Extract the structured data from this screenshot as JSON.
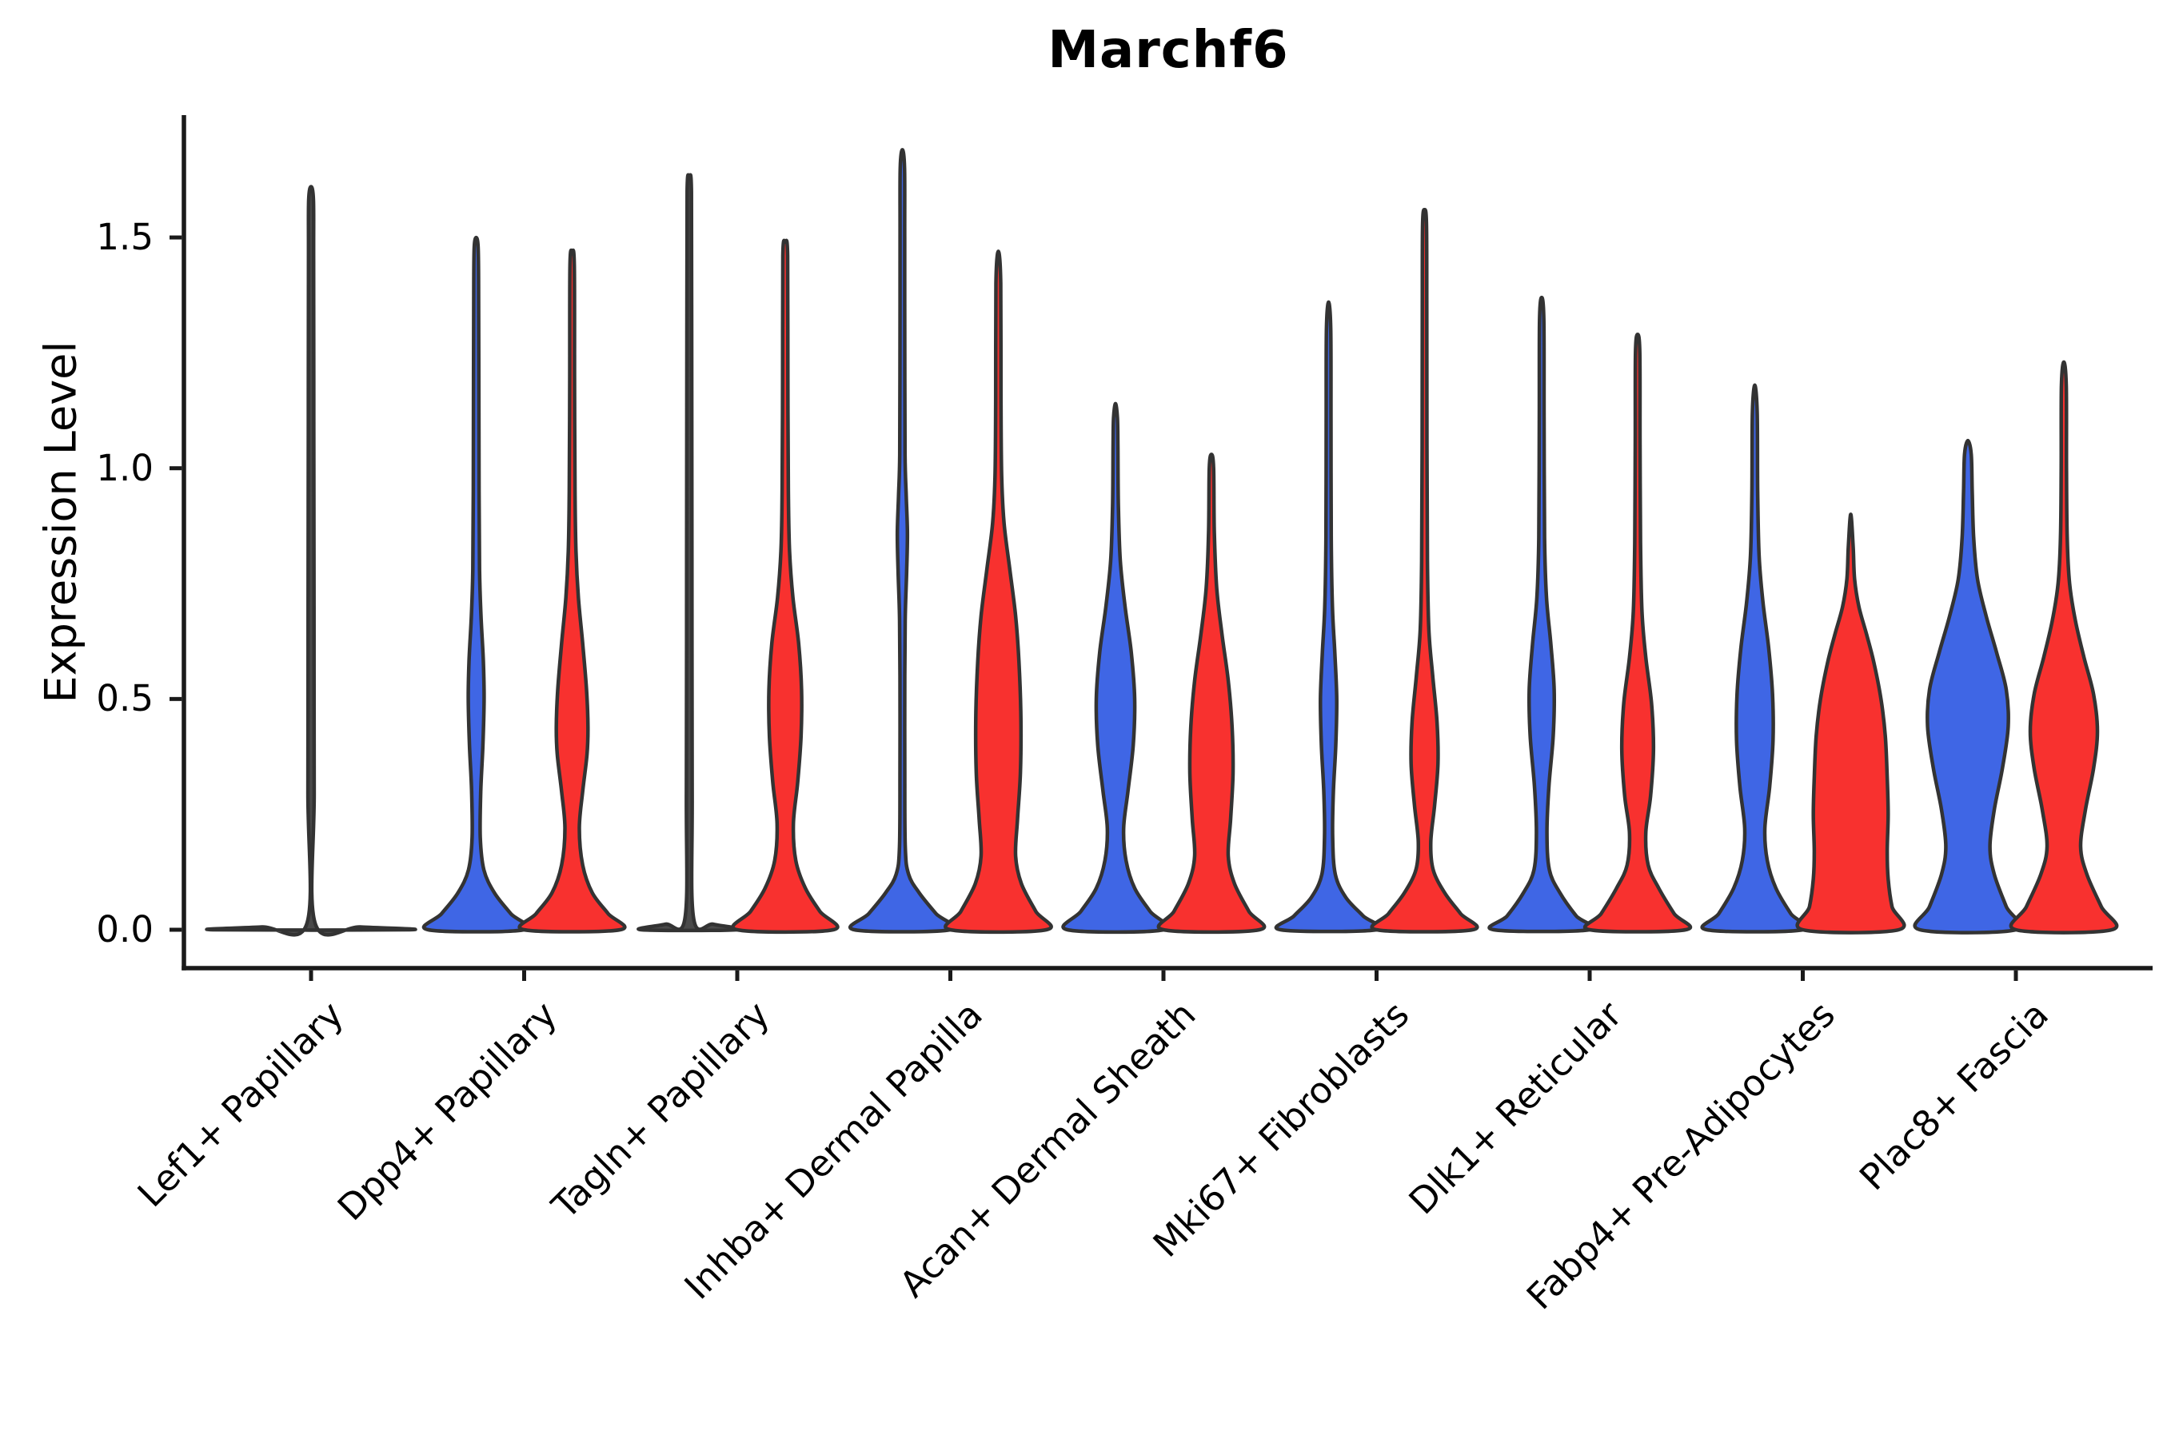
{
  "title": "Marchf6",
  "axes": {
    "ylabel": "Expression Level",
    "yticks": [
      {
        "label": "0.0",
        "value": 0.0
      },
      {
        "label": "0.5",
        "value": 0.5
      },
      {
        "label": "1.0",
        "value": 1.0
      },
      {
        "label": "1.5",
        "value": 1.5
      }
    ]
  },
  "style": {
    "blue": "#3F66E5",
    "red": "#F8312F",
    "collapsed": "#4a4a4a",
    "stroke": "#333333",
    "axis_color": "#1a1a1a",
    "text_color": "#000000",
    "background": "#ffffff"
  },
  "chart_data": {
    "type": "violin",
    "title": "Marchf6",
    "xlabel": "",
    "ylabel": "Expression Level",
    "ylim": [
      -0.08,
      1.77
    ],
    "yticks": [
      0.0,
      0.5,
      1.0,
      1.5
    ],
    "grid": false,
    "legend": "none",
    "categories": [
      "Lef1+ Papillary",
      "Dpp4+ Papillary",
      "Tagln+ Papillary",
      "Inhba+ Dermal Papilla",
      "Acan+ Dermal Sheath",
      "Mki67+ Fibroblasts",
      "Dlk1+ Reticular",
      "Fabp4+ Pre-Adipocytes",
      "Plac8+ Fascia"
    ],
    "series": [
      {
        "name": "blue",
        "color": "#3F66E5",
        "position": "left"
      },
      {
        "name": "red",
        "color": "#F8312F",
        "position": "right"
      }
    ],
    "violins": [
      {
        "category": 0,
        "side": "center",
        "series": "collapsed",
        "peak_expression": 1.61,
        "shape": [
          [
            0,
            1
          ],
          [
            0.006,
            0.5
          ],
          [
            0.012,
            0.045
          ],
          [
            0.3,
            0.032
          ],
          [
            0.7,
            0.03
          ],
          [
            1.1,
            0.028
          ],
          [
            1.45,
            0.026
          ],
          [
            1.58,
            0.024
          ],
          [
            1.61,
            0
          ]
        ]
      },
      {
        "category": 1,
        "side": "left",
        "series": "blue",
        "peak_expression": 1.5,
        "shape": [
          [
            0,
            1
          ],
          [
            0.035,
            0.72
          ],
          [
            0.08,
            0.38
          ],
          [
            0.13,
            0.16
          ],
          [
            0.2,
            0.085
          ],
          [
            0.3,
            0.095
          ],
          [
            0.4,
            0.14
          ],
          [
            0.5,
            0.165
          ],
          [
            0.58,
            0.15
          ],
          [
            0.68,
            0.1
          ],
          [
            0.78,
            0.07
          ],
          [
            0.95,
            0.06
          ],
          [
            1.2,
            0.055
          ],
          [
            1.4,
            0.05
          ],
          [
            1.48,
            0.04
          ],
          [
            1.5,
            0
          ]
        ]
      },
      {
        "category": 1,
        "side": "right",
        "series": "red",
        "peak_expression": 1.47,
        "shape": [
          [
            0,
            1
          ],
          [
            0.035,
            0.75
          ],
          [
            0.08,
            0.42
          ],
          [
            0.14,
            0.22
          ],
          [
            0.22,
            0.15
          ],
          [
            0.3,
            0.22
          ],
          [
            0.38,
            0.31
          ],
          [
            0.44,
            0.33
          ],
          [
            0.52,
            0.3
          ],
          [
            0.62,
            0.22
          ],
          [
            0.72,
            0.13
          ],
          [
            0.82,
            0.08
          ],
          [
            0.95,
            0.06
          ],
          [
            1.2,
            0.05
          ],
          [
            1.44,
            0.045
          ],
          [
            1.47,
            0
          ]
        ]
      },
      {
        "category": 2,
        "side": "left",
        "series": "collapsed",
        "peak_expression": 1.63,
        "shape": [
          [
            0,
            1
          ],
          [
            0.012,
            0.5
          ],
          [
            0.025,
            0.09
          ],
          [
            0.3,
            0.06
          ],
          [
            0.8,
            0.055
          ],
          [
            1.3,
            0.05
          ],
          [
            1.6,
            0.045
          ],
          [
            1.63,
            0
          ]
        ]
      },
      {
        "category": 2,
        "side": "right",
        "series": "red",
        "peak_expression": 1.49,
        "shape": [
          [
            0,
            1
          ],
          [
            0.04,
            0.72
          ],
          [
            0.09,
            0.42
          ],
          [
            0.15,
            0.22
          ],
          [
            0.23,
            0.17
          ],
          [
            0.32,
            0.26
          ],
          [
            0.42,
            0.33
          ],
          [
            0.52,
            0.34
          ],
          [
            0.62,
            0.28
          ],
          [
            0.72,
            0.16
          ],
          [
            0.82,
            0.09
          ],
          [
            0.95,
            0.065
          ],
          [
            1.2,
            0.055
          ],
          [
            1.46,
            0.05
          ],
          [
            1.49,
            0
          ]
        ]
      },
      {
        "category": 3,
        "side": "left",
        "series": "blue",
        "peak_expression": 1.69,
        "shape": [
          [
            0,
            1
          ],
          [
            0.035,
            0.7
          ],
          [
            0.08,
            0.35
          ],
          [
            0.12,
            0.13
          ],
          [
            0.18,
            0.06
          ],
          [
            0.35,
            0.05
          ],
          [
            0.55,
            0.05
          ],
          [
            0.68,
            0.06
          ],
          [
            0.78,
            0.09
          ],
          [
            0.86,
            0.105
          ],
          [
            0.94,
            0.08
          ],
          [
            1.03,
            0.055
          ],
          [
            1.25,
            0.05
          ],
          [
            1.5,
            0.048
          ],
          [
            1.65,
            0.045
          ],
          [
            1.69,
            0
          ]
        ]
      },
      {
        "category": 3,
        "side": "right",
        "series": "red",
        "peak_expression": 1.47,
        "shape": [
          [
            0,
            1
          ],
          [
            0.04,
            0.78
          ],
          [
            0.1,
            0.48
          ],
          [
            0.16,
            0.36
          ],
          [
            0.24,
            0.4
          ],
          [
            0.34,
            0.46
          ],
          [
            0.46,
            0.47
          ],
          [
            0.58,
            0.43
          ],
          [
            0.68,
            0.36
          ],
          [
            0.78,
            0.24
          ],
          [
            0.88,
            0.12
          ],
          [
            0.98,
            0.07
          ],
          [
            1.15,
            0.055
          ],
          [
            1.4,
            0.05
          ],
          [
            1.47,
            0
          ]
        ]
      },
      {
        "category": 4,
        "side": "left",
        "series": "blue",
        "peak_expression": 1.14,
        "shape": [
          [
            0,
            1
          ],
          [
            0.04,
            0.72
          ],
          [
            0.09,
            0.4
          ],
          [
            0.15,
            0.22
          ],
          [
            0.22,
            0.17
          ],
          [
            0.3,
            0.26
          ],
          [
            0.4,
            0.37
          ],
          [
            0.5,
            0.4
          ],
          [
            0.6,
            0.33
          ],
          [
            0.7,
            0.2
          ],
          [
            0.8,
            0.1
          ],
          [
            0.92,
            0.06
          ],
          [
            1.05,
            0.05
          ],
          [
            1.11,
            0.04
          ],
          [
            1.14,
            0
          ]
        ]
      },
      {
        "category": 4,
        "side": "right",
        "series": "red",
        "peak_expression": 1.03,
        "shape": [
          [
            0,
            1
          ],
          [
            0.04,
            0.78
          ],
          [
            0.1,
            0.48
          ],
          [
            0.16,
            0.35
          ],
          [
            0.24,
            0.4
          ],
          [
            0.34,
            0.45
          ],
          [
            0.44,
            0.43
          ],
          [
            0.54,
            0.35
          ],
          [
            0.64,
            0.22
          ],
          [
            0.74,
            0.11
          ],
          [
            0.86,
            0.06
          ],
          [
            1.0,
            0.045
          ],
          [
            1.03,
            0
          ]
        ]
      },
      {
        "category": 5,
        "side": "left",
        "series": "blue",
        "peak_expression": 1.36,
        "shape": [
          [
            0,
            1
          ],
          [
            0.03,
            0.72
          ],
          [
            0.07,
            0.36
          ],
          [
            0.12,
            0.14
          ],
          [
            0.2,
            0.085
          ],
          [
            0.3,
            0.1
          ],
          [
            0.4,
            0.15
          ],
          [
            0.5,
            0.17
          ],
          [
            0.6,
            0.13
          ],
          [
            0.7,
            0.08
          ],
          [
            0.85,
            0.055
          ],
          [
            1.1,
            0.05
          ],
          [
            1.3,
            0.045
          ],
          [
            1.36,
            0
          ]
        ]
      },
      {
        "category": 5,
        "side": "right",
        "series": "red",
        "peak_expression": 1.56,
        "shape": [
          [
            0,
            1
          ],
          [
            0.035,
            0.75
          ],
          [
            0.08,
            0.42
          ],
          [
            0.13,
            0.18
          ],
          [
            0.19,
            0.13
          ],
          [
            0.27,
            0.21
          ],
          [
            0.36,
            0.28
          ],
          [
            0.45,
            0.26
          ],
          [
            0.55,
            0.17
          ],
          [
            0.65,
            0.09
          ],
          [
            0.8,
            0.06
          ],
          [
            1.05,
            0.05
          ],
          [
            1.35,
            0.047
          ],
          [
            1.53,
            0.04
          ],
          [
            1.56,
            0
          ]
        ]
      },
      {
        "category": 6,
        "side": "left",
        "series": "blue",
        "peak_expression": 1.37,
        "shape": [
          [
            0,
            1
          ],
          [
            0.03,
            0.72
          ],
          [
            0.08,
            0.38
          ],
          [
            0.13,
            0.16
          ],
          [
            0.21,
            0.11
          ],
          [
            0.31,
            0.15
          ],
          [
            0.42,
            0.24
          ],
          [
            0.52,
            0.26
          ],
          [
            0.62,
            0.19
          ],
          [
            0.72,
            0.1
          ],
          [
            0.85,
            0.06
          ],
          [
            1.1,
            0.05
          ],
          [
            1.32,
            0.045
          ],
          [
            1.37,
            0
          ]
        ]
      },
      {
        "category": 6,
        "side": "right",
        "series": "red",
        "peak_expression": 1.29,
        "shape": [
          [
            0,
            1
          ],
          [
            0.035,
            0.76
          ],
          [
            0.09,
            0.44
          ],
          [
            0.14,
            0.22
          ],
          [
            0.21,
            0.17
          ],
          [
            0.29,
            0.27
          ],
          [
            0.39,
            0.33
          ],
          [
            0.49,
            0.29
          ],
          [
            0.59,
            0.17
          ],
          [
            0.69,
            0.09
          ],
          [
            0.84,
            0.06
          ],
          [
            1.05,
            0.05
          ],
          [
            1.25,
            0.045
          ],
          [
            1.29,
            0
          ]
        ]
      },
      {
        "category": 7,
        "side": "left",
        "series": "blue",
        "peak_expression": 1.18,
        "shape": [
          [
            0,
            1
          ],
          [
            0.035,
            0.75
          ],
          [
            0.09,
            0.44
          ],
          [
            0.15,
            0.26
          ],
          [
            0.22,
            0.21
          ],
          [
            0.31,
            0.31
          ],
          [
            0.41,
            0.38
          ],
          [
            0.51,
            0.37
          ],
          [
            0.61,
            0.29
          ],
          [
            0.71,
            0.17
          ],
          [
            0.81,
            0.09
          ],
          [
            0.95,
            0.06
          ],
          [
            1.12,
            0.05
          ],
          [
            1.18,
            0
          ]
        ]
      },
      {
        "category": 7,
        "side": "right",
        "series": "red",
        "peak_expression": 0.9,
        "shape": [
          [
            0,
            1
          ],
          [
            0.05,
            0.86
          ],
          [
            0.11,
            0.78
          ],
          [
            0.17,
            0.76
          ],
          [
            0.25,
            0.78
          ],
          [
            0.33,
            0.76
          ],
          [
            0.42,
            0.72
          ],
          [
            0.5,
            0.63
          ],
          [
            0.58,
            0.48
          ],
          [
            0.64,
            0.33
          ],
          [
            0.7,
            0.17
          ],
          [
            0.76,
            0.08
          ],
          [
            0.83,
            0.05
          ],
          [
            0.9,
            0
          ]
        ]
      },
      {
        "category": 8,
        "side": "left",
        "series": "blue",
        "peak_expression": 1.06,
        "shape": [
          [
            0,
            1
          ],
          [
            0.05,
            0.8
          ],
          [
            0.12,
            0.55
          ],
          [
            0.18,
            0.46
          ],
          [
            0.26,
            0.55
          ],
          [
            0.35,
            0.72
          ],
          [
            0.44,
            0.84
          ],
          [
            0.52,
            0.8
          ],
          [
            0.6,
            0.6
          ],
          [
            0.68,
            0.38
          ],
          [
            0.76,
            0.2
          ],
          [
            0.85,
            0.12
          ],
          [
            0.95,
            0.09
          ],
          [
            1.03,
            0.07
          ],
          [
            1.06,
            0
          ]
        ]
      },
      {
        "category": 8,
        "side": "right",
        "series": "red",
        "peak_expression": 1.23,
        "shape": [
          [
            0,
            1
          ],
          [
            0.05,
            0.78
          ],
          [
            0.12,
            0.48
          ],
          [
            0.18,
            0.35
          ],
          [
            0.26,
            0.45
          ],
          [
            0.35,
            0.62
          ],
          [
            0.43,
            0.7
          ],
          [
            0.51,
            0.62
          ],
          [
            0.59,
            0.42
          ],
          [
            0.67,
            0.24
          ],
          [
            0.75,
            0.12
          ],
          [
            0.85,
            0.07
          ],
          [
            1.0,
            0.055
          ],
          [
            1.18,
            0.05
          ],
          [
            1.23,
            0
          ]
        ]
      }
    ]
  }
}
